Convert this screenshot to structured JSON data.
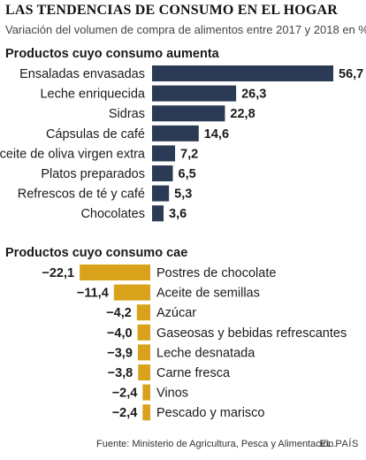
{
  "title": "LAS TENDENCIAS DE CONSUMO EN EL HOGAR",
  "subtitle": "Variación del volumen de compra de alimentos entre 2017 y 2018 en %",
  "source": "Fuente: Ministerio de Agricultura, Pesca y Alimentación.",
  "brand": "EL PAÍS",
  "colors": {
    "increase": "#2b3a55",
    "decrease": "#d9a21b"
  },
  "chart_data": [
    {
      "type": "bar",
      "title": "Productos cuyo consumo aumenta",
      "categories": [
        "Ensaladas envasadas",
        "Leche enriquecida",
        "Sidras",
        "Cápsulas de café",
        "Aceite de oliva virgen extra",
        "Platos preparados",
        "Refrescos de té y café",
        "Chocolates"
      ],
      "values": [
        56.7,
        26.3,
        22.8,
        14.6,
        7.2,
        6.5,
        5.3,
        3.6
      ],
      "value_labels": [
        "56,7",
        "26,3",
        "22,8",
        "14,6",
        "7,2",
        "6,5",
        "5,3",
        "3,6"
      ]
    },
    {
      "type": "bar",
      "title": "Productos cuyo consumo cae",
      "categories": [
        "Postres de chocolate",
        "Aceite de semillas",
        "Azúcar",
        "Gaseosas y bebidas refrescantes",
        "Leche desnatada",
        "Carne fresca",
        "Vinos",
        "Pescado y marisco"
      ],
      "values": [
        -22.1,
        -11.4,
        -4.2,
        -4.0,
        -3.9,
        -3.8,
        -2.4,
        -2.4
      ],
      "value_labels": [
        "−22,1",
        "−11,4",
        "−4,2",
        "−4,0",
        "−3,9",
        "−3,8",
        "−2,4",
        "−2,4"
      ]
    }
  ]
}
